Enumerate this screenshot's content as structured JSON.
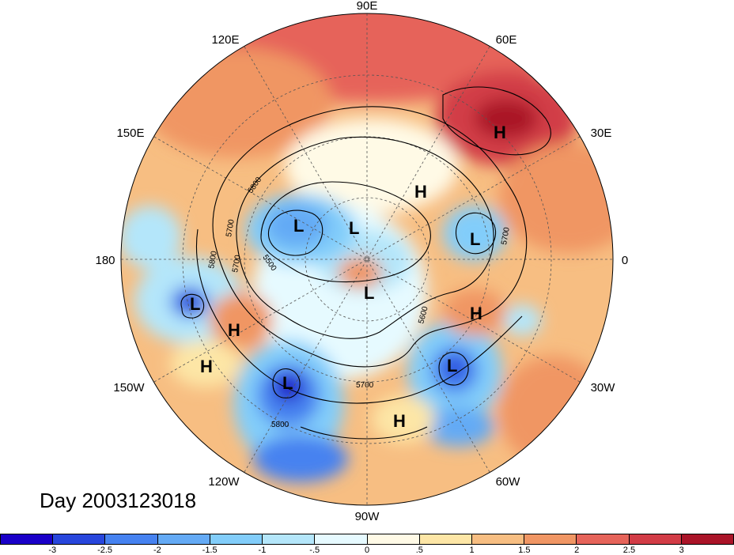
{
  "title": "Day 2003123018",
  "longitude_labels": {
    "top": "90E",
    "upper_left": "120E",
    "upper_right": "60E",
    "mid_left": "150E",
    "mid_right": "30E",
    "left": "180",
    "right": "0",
    "lower_left": "150W",
    "lower_right": "30W",
    "bottom_left": "120W",
    "bottom_right": "60W",
    "bottom": "90W"
  },
  "contour_labels": [
    "5800",
    "5700",
    "5800",
    "5700",
    "5500",
    "5600",
    "5700",
    "5800",
    "5700"
  ],
  "pressure_centers": [
    {
      "type": "H",
      "lon": "~40E"
    },
    {
      "type": "H",
      "lon": "~70E"
    },
    {
      "type": "L",
      "lon": "~150E"
    },
    {
      "type": "L",
      "lon": "~120E"
    },
    {
      "type": "L",
      "lon": "~10E"
    },
    {
      "type": "L",
      "lon": "~90W"
    },
    {
      "type": "L",
      "lon": "~165W"
    },
    {
      "type": "H",
      "lon": "~150W"
    },
    {
      "type": "H",
      "lon": "~155W"
    },
    {
      "type": "L",
      "lon": "~125W"
    },
    {
      "type": "H",
      "lon": "~30W"
    },
    {
      "type": "L",
      "lon": "~50W"
    },
    {
      "type": "H",
      "lon": "~75W"
    }
  ],
  "colorbar": {
    "colors": [
      "#1a00c8",
      "#2846dc",
      "#4682f0",
      "#64aaf5",
      "#82cdfa",
      "#b4e6fa",
      "#e6faff",
      "#fffae6",
      "#fde6a6",
      "#f7be82",
      "#f09664",
      "#e6645a",
      "#d23c46",
      "#aa1428"
    ],
    "ticks": [
      "-3",
      "-2.5",
      "-2",
      "-1.5",
      "-1",
      "-.5",
      "0",
      ".5",
      "1",
      "1.5",
      "2",
      "2.5",
      "3"
    ]
  }
}
